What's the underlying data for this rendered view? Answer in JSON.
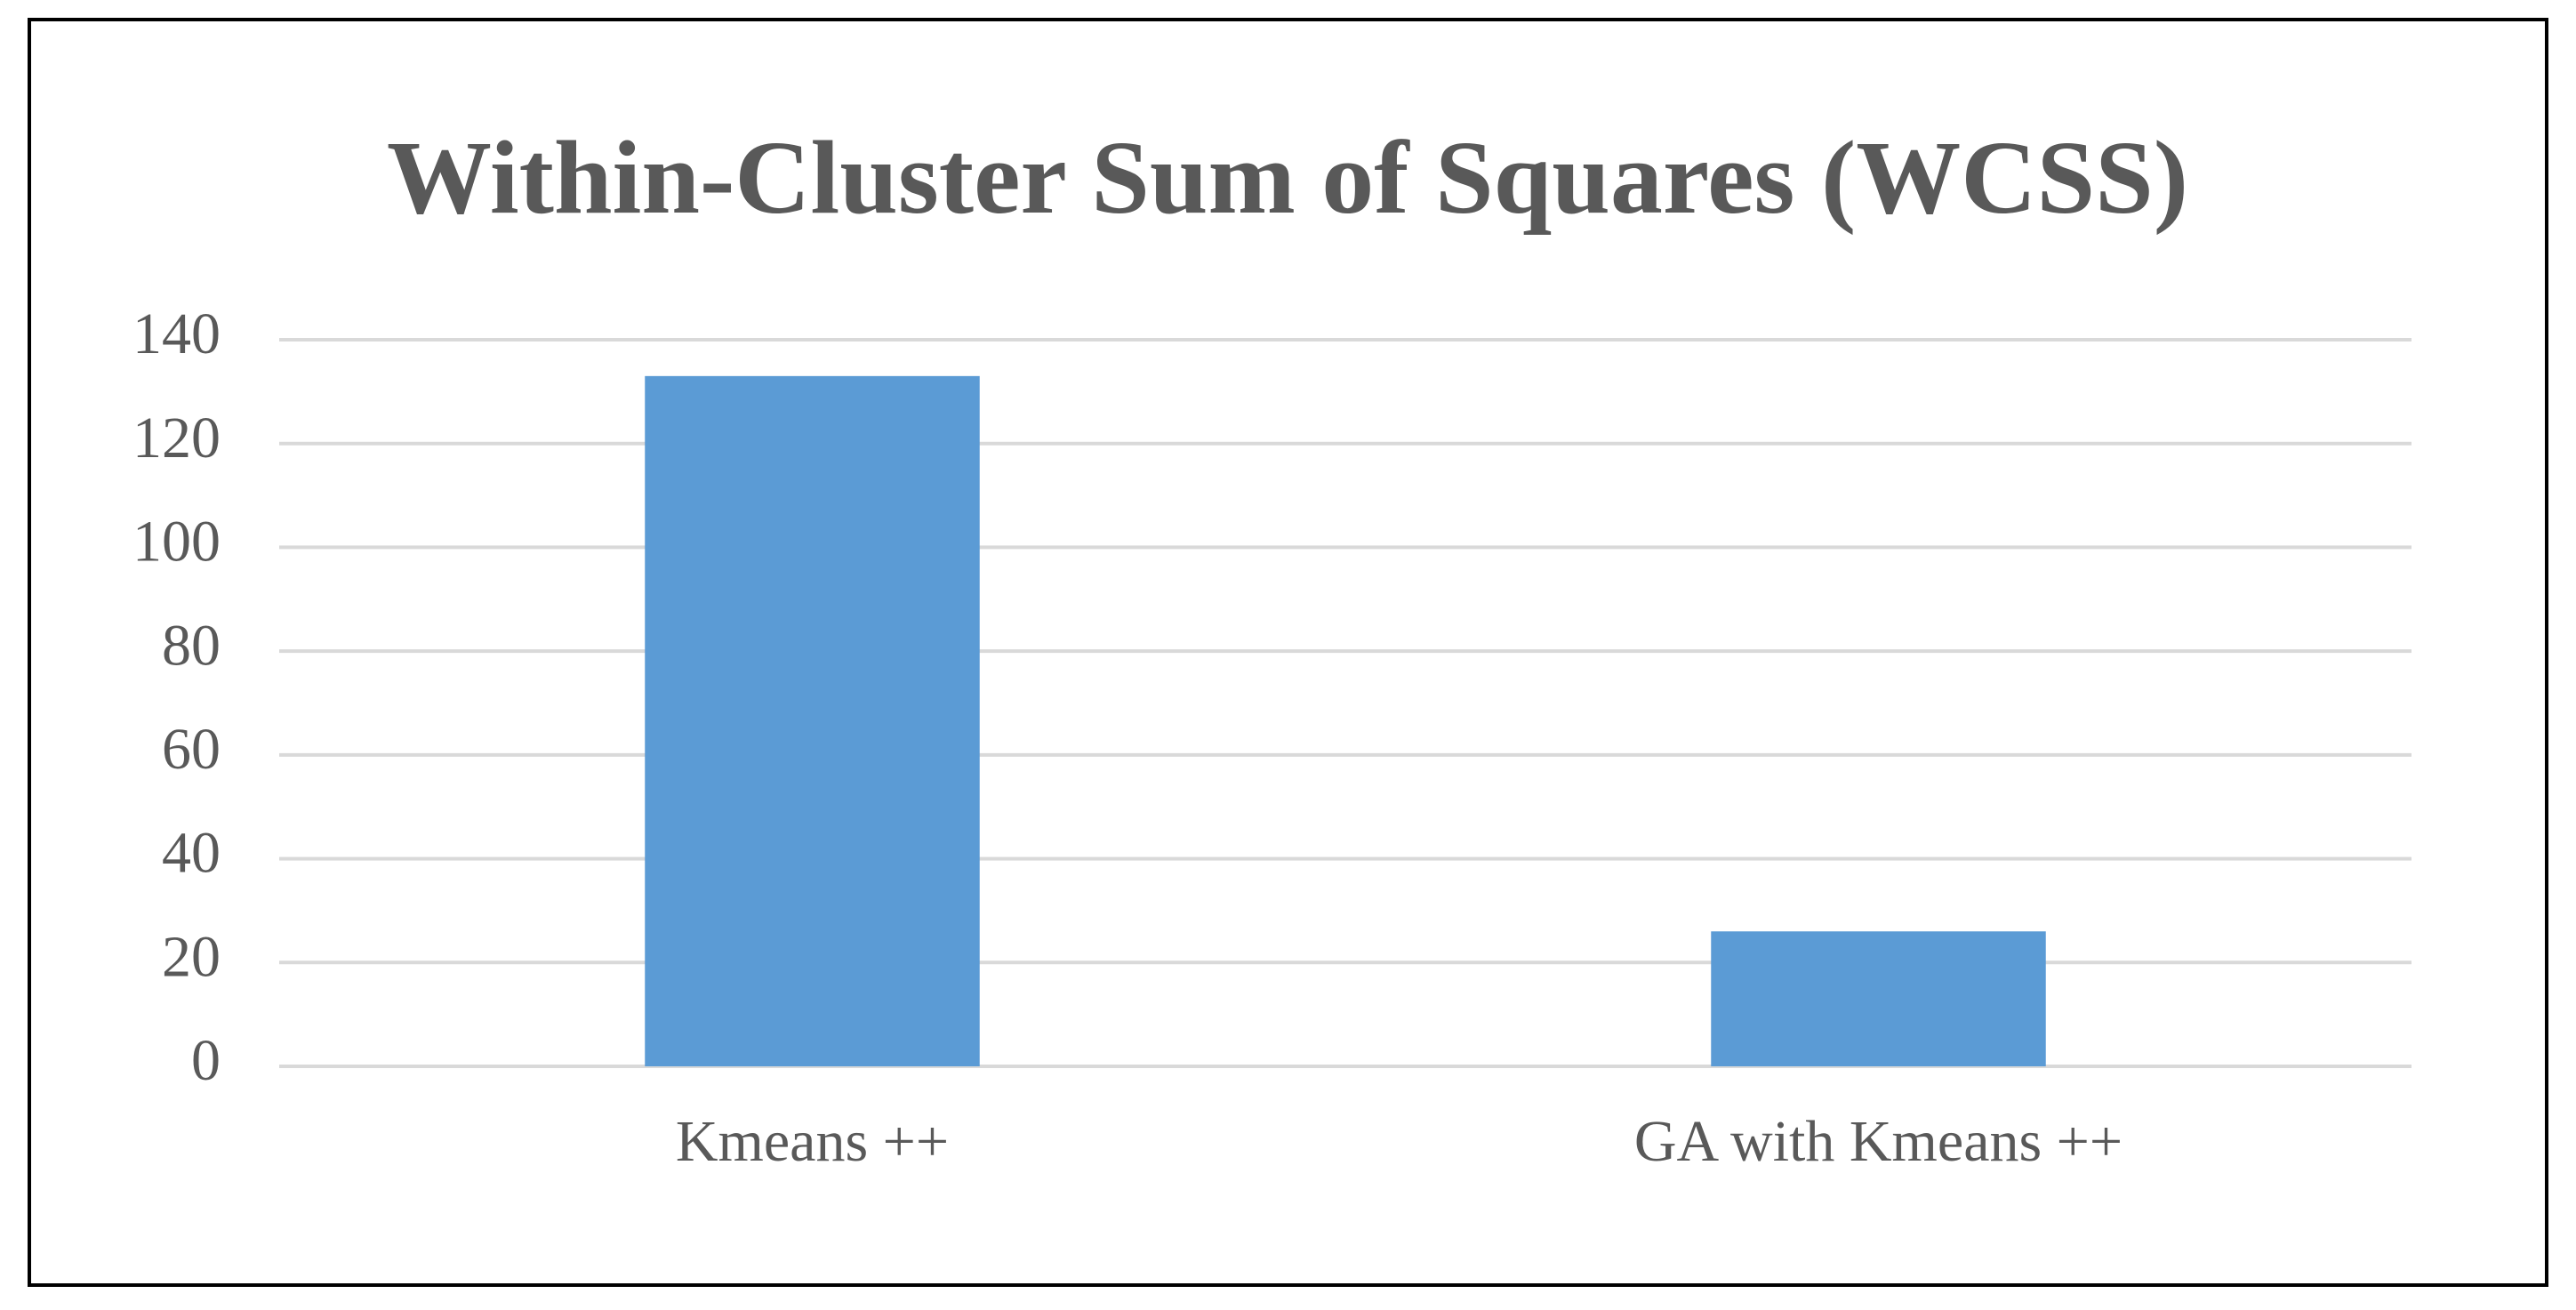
{
  "chart_data": {
    "type": "bar",
    "title": "Within-Cluster Sum of Squares (WCSS)",
    "categories": [
      "Kmeans ++",
      "GA with Kmeans ++"
    ],
    "values": [
      133,
      26
    ],
    "color": "#5b9bd5",
    "ylim": [
      0,
      140
    ],
    "yticks": [
      0,
      20,
      40,
      60,
      80,
      100,
      120,
      140
    ],
    "grid": true
  }
}
